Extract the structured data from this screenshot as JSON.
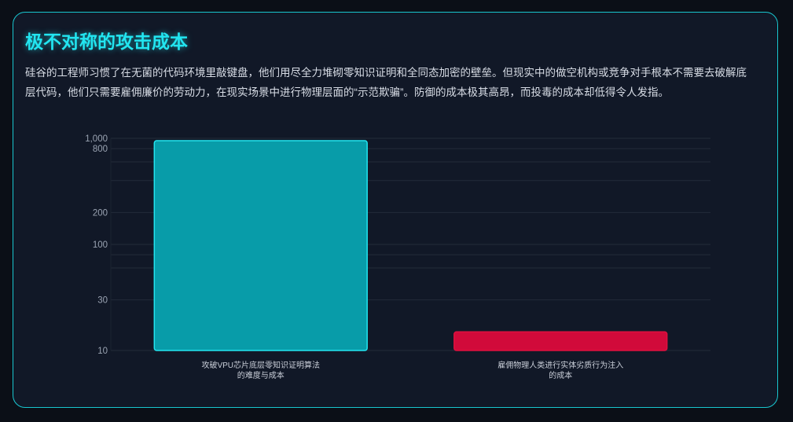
{
  "title": "极不对称的攻击成本",
  "description": "硅谷的工程师习惯了在无菌的代码环境里敲键盘，他们用尽全力堆砌零知识证明和全同态加密的壁垒。但现实中的做空机构或竞争对手根本不需要去破解底层代码，他们只需要雇佣廉价的劳动力，在现实场景中进行物理层面的“示范欺骗”。防御的成本极其高昂，而投毒的成本却低得令人发指。",
  "chart_data": {
    "type": "bar",
    "y_scale": "log",
    "ylim": [
      10,
      1000
    ],
    "y_ticks": [
      10,
      30,
      100,
      200,
      800,
      1000
    ],
    "y_tick_labels": [
      "10",
      "30",
      "100",
      "200",
      "800",
      "1,000"
    ],
    "grid_values": [
      10,
      30,
      60,
      80,
      100,
      200,
      400,
      600,
      800,
      1000
    ],
    "grid": true,
    "categories": [
      [
        "攻破VPU芯片底层零知识证明算法",
        "的难度与成本"
      ],
      [
        "雇佣物理人类进行实体劣质行为注入",
        "的成本"
      ]
    ],
    "values": [
      950,
      15
    ],
    "colors": [
      "#089ca9",
      "#d10a3a"
    ],
    "border_colors": [
      "#22e5f0",
      "#e0103f"
    ]
  }
}
